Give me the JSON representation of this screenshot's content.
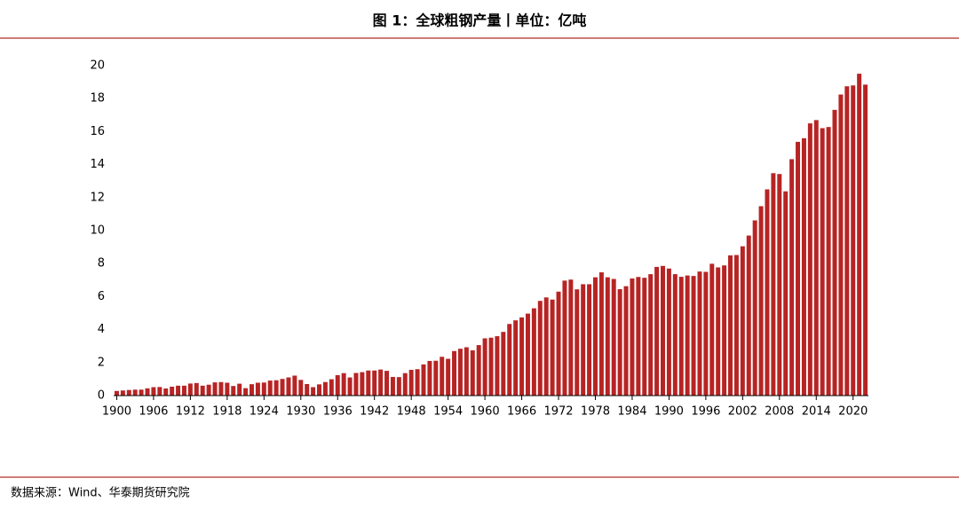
{
  "chart_data": {
    "type": "bar",
    "title": "图 1：全球粗钢产量丨单位：亿吨",
    "source": "数据来源：Wind、华泰期货研究院",
    "x": [
      1900,
      1901,
      1902,
      1903,
      1904,
      1905,
      1906,
      1907,
      1908,
      1909,
      1910,
      1911,
      1912,
      1913,
      1914,
      1915,
      1916,
      1917,
      1918,
      1919,
      1920,
      1921,
      1922,
      1923,
      1924,
      1925,
      1926,
      1927,
      1928,
      1929,
      1930,
      1931,
      1932,
      1933,
      1934,
      1935,
      1936,
      1937,
      1938,
      1939,
      1940,
      1941,
      1942,
      1943,
      1944,
      1945,
      1946,
      1947,
      1948,
      1949,
      1950,
      1951,
      1952,
      1953,
      1954,
      1955,
      1956,
      1957,
      1958,
      1959,
      1960,
      1961,
      1962,
      1963,
      1964,
      1965,
      1966,
      1967,
      1968,
      1969,
      1970,
      1971,
      1972,
      1973,
      1974,
      1975,
      1976,
      1977,
      1978,
      1979,
      1980,
      1981,
      1982,
      1983,
      1984,
      1985,
      1986,
      1987,
      1988,
      1989,
      1990,
      1991,
      1992,
      1993,
      1994,
      1995,
      1996,
      1997,
      1998,
      1999,
      2000,
      2001,
      2002,
      2003,
      2004,
      2005,
      2006,
      2007,
      2008,
      2009,
      2010,
      2011,
      2012,
      2013,
      2014,
      2015,
      2016,
      2017,
      2018,
      2019,
      2020,
      2021,
      2022
    ],
    "values": [
      0.28,
      0.31,
      0.34,
      0.36,
      0.36,
      0.44,
      0.51,
      0.52,
      0.43,
      0.54,
      0.6,
      0.6,
      0.73,
      0.76,
      0.6,
      0.66,
      0.8,
      0.82,
      0.78,
      0.58,
      0.72,
      0.45,
      0.69,
      0.78,
      0.79,
      0.91,
      0.93,
      1.01,
      1.1,
      1.21,
      0.95,
      0.7,
      0.51,
      0.68,
      0.82,
      0.99,
      1.24,
      1.36,
      1.1,
      1.37,
      1.42,
      1.52,
      1.52,
      1.58,
      1.5,
      1.13,
      1.12,
      1.36,
      1.56,
      1.6,
      1.89,
      2.1,
      2.11,
      2.35,
      2.23,
      2.7,
      2.84,
      2.93,
      2.74,
      3.06,
      3.47,
      3.51,
      3.6,
      3.86,
      4.34,
      4.56,
      4.74,
      4.97,
      5.29,
      5.74,
      5.95,
      5.82,
      6.3,
      6.97,
      7.03,
      6.44,
      6.75,
      6.75,
      7.17,
      7.47,
      7.17,
      7.07,
      6.45,
      6.63,
      7.1,
      7.19,
      7.14,
      7.36,
      7.8,
      7.86,
      7.7,
      7.36,
      7.2,
      7.28,
      7.25,
      7.52,
      7.5,
      7.99,
      7.77,
      7.89,
      8.5,
      8.52,
      9.05,
      9.7,
      10.62,
      11.48,
      12.5,
      13.48,
      13.43,
      12.38,
      14.33,
      15.38,
      15.6,
      16.5,
      16.7,
      16.21,
      16.28,
      17.32,
      18.25,
      18.75,
      18.8,
      19.51,
      18.85
    ],
    "color": "#b72424",
    "xlim": [
      1899.5,
      2022.5
    ],
    "xticks": [
      1900,
      1906,
      1912,
      1918,
      1924,
      1930,
      1936,
      1942,
      1948,
      1954,
      1960,
      1966,
      1972,
      1978,
      1984,
      1990,
      1996,
      2002,
      2008,
      2014,
      2020
    ],
    "ylim": [
      0,
      20
    ],
    "yticks": [
      0,
      2,
      4,
      6,
      8,
      10,
      12,
      14,
      16,
      18,
      20
    ],
    "grid": false
  }
}
